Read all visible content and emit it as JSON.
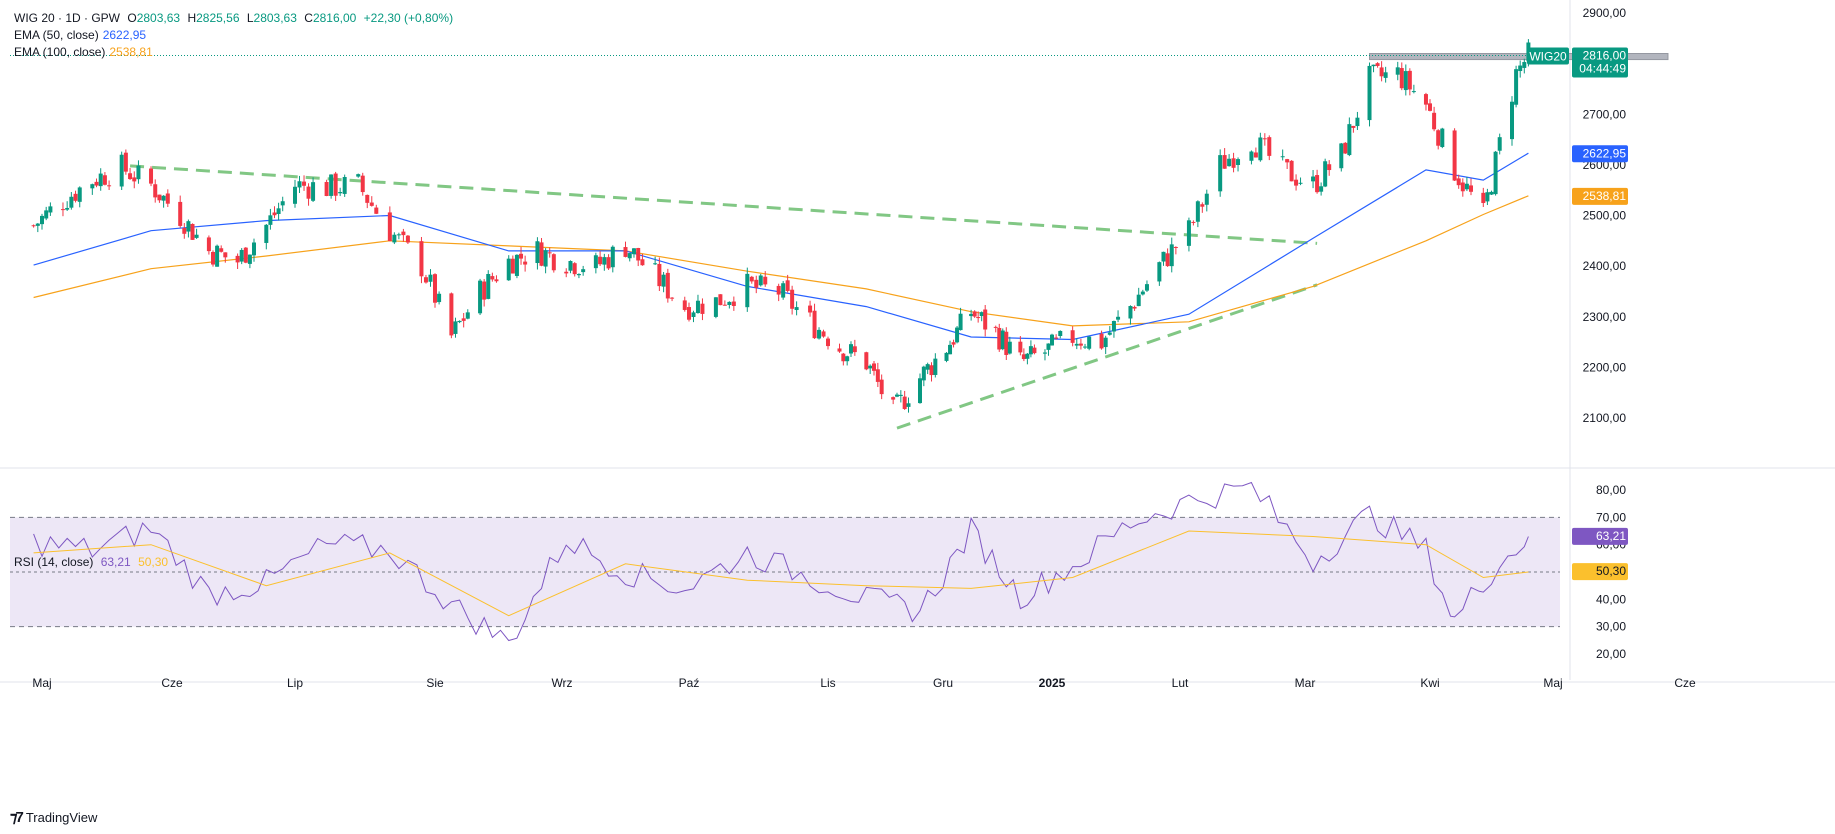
{
  "header": {
    "symbol": "WIG 20 · 1D · GPW",
    "o_label": "O",
    "o_value": "2803,63",
    "h_label": "H",
    "h_value": "2825,56",
    "l_label": "L",
    "l_value": "2803,63",
    "c_label": "C",
    "c_value": "2816,00",
    "change": "+22,30 (+0,80%)",
    "ema50_label": "EMA (50, close)",
    "ema50_value": "2622,95",
    "ema100_label": "EMA (100, close)",
    "ema100_value": "2538,81"
  },
  "rsi_header": {
    "label": "RSI (14, close)",
    "rsi_value": "63,21",
    "ma_value": "50,30"
  },
  "branding": {
    "logo_text": "TradingView",
    "logo_icon": "tradingview-logo-icon"
  },
  "colors": {
    "up": "#089981",
    "down": "#f23645",
    "ema50": "#2962ff",
    "ema100": "#f7a21b",
    "rsi": "#7e57c2",
    "rsi_ma": "#fbc02d",
    "trendline": "#81c784",
    "band": "#ede7f6"
  },
  "chart_data": [
    {
      "type": "candlestick",
      "title": "WIG 20",
      "xlabel": "",
      "ylabel": "",
      "x_ticks": [
        "Maj",
        "Cze",
        "Lip",
        "Sie",
        "Wrz",
        "Paź",
        "Lis",
        "Gru",
        "2025",
        "Lut",
        "Mar",
        "Kwi",
        "Maj",
        "Cze"
      ],
      "y_ticks": [
        "2100,00",
        "2200,00",
        "2300,00",
        "2400,00",
        "2500,00",
        "2600,00",
        "2700,00",
        "2800,00",
        "2900,00"
      ],
      "ylim": [
        2050,
        2910
      ],
      "price_labels": [
        {
          "name": "WIG20",
          "value": 2816.0,
          "text": "2816,00",
          "timer": "04:44:49",
          "color": "#089981"
        },
        {
          "name": "EMA 50",
          "value": 2622.95,
          "text": "2622,95",
          "color": "#2962ff"
        },
        {
          "name": "EMA 100",
          "value": 2538.81,
          "text": "2538,81",
          "color": "#f7a21b"
        }
      ],
      "resistance_zone": {
        "from_date": "2025-03-17",
        "to_date": "2025-05-28",
        "y_low": 2808,
        "y_high": 2820
      },
      "trendlines": [
        {
          "from": [
            "2024-05-22",
            2598
          ],
          "to": [
            "2025-03-04",
            2445
          ]
        },
        {
          "from": [
            "2024-11-19",
            2080
          ],
          "to": [
            "2025-03-04",
            2363
          ]
        }
      ],
      "series": [
        {
          "name": "Close",
          "dates": [
            "2024-04-29",
            "2024-05-06",
            "2024-05-13",
            "2024-05-20",
            "2024-05-27",
            "2024-06-03",
            "2024-06-10",
            "2024-06-17",
            "2024-06-24",
            "2024-07-01",
            "2024-07-08",
            "2024-07-15",
            "2024-07-22",
            "2024-07-29",
            "2024-08-05",
            "2024-08-12",
            "2024-08-19",
            "2024-08-26",
            "2024-09-02",
            "2024-09-09",
            "2024-09-16",
            "2024-09-23",
            "2024-09-30",
            "2024-10-07",
            "2024-10-14",
            "2024-10-21",
            "2024-10-28",
            "2024-11-04",
            "2024-11-11",
            "2024-11-18",
            "2024-11-25",
            "2024-12-02",
            "2024-12-09",
            "2024-12-16",
            "2024-12-23",
            "2024-12-30",
            "2025-01-06",
            "2025-01-13",
            "2025-01-20",
            "2025-01-27",
            "2025-02-03",
            "2025-02-10",
            "2025-02-17",
            "2025-02-24",
            "2025-03-03",
            "2025-03-10",
            "2025-03-17",
            "2025-03-24",
            "2025-03-31",
            "2025-04-07",
            "2025-04-14",
            "2025-04-22",
            "2025-04-25"
          ],
          "values": [
            2480,
            2530,
            2570,
            2595,
            2560,
            2500,
            2430,
            2410,
            2480,
            2560,
            2555,
            2560,
            2470,
            2400,
            2260,
            2350,
            2410,
            2430,
            2410,
            2400,
            2440,
            2380,
            2320,
            2330,
            2360,
            2350,
            2290,
            2240,
            2210,
            2110,
            2180,
            2240,
            2310,
            2270,
            2210,
            2230,
            2260,
            2250,
            2320,
            2400,
            2470,
            2600,
            2650,
            2590,
            2560,
            2620,
            2770,
            2780,
            2720,
            2590,
            2500,
            2780,
            2816
          ]
        },
        {
          "name": "EMA 50",
          "dates": [
            "2024-04-29",
            "2024-05-27",
            "2024-06-24",
            "2024-07-22",
            "2024-08-19",
            "2024-09-16",
            "2024-10-14",
            "2024-11-11",
            "2024-12-09",
            "2025-01-06",
            "2025-02-03",
            "2025-03-03",
            "2025-03-31",
            "2025-04-14",
            "2025-04-25"
          ],
          "values": [
            2402,
            2470,
            2490,
            2500,
            2430,
            2430,
            2360,
            2320,
            2260,
            2255,
            2305,
            2455,
            2590,
            2570,
            2623
          ]
        },
        {
          "name": "EMA 100",
          "dates": [
            "2024-04-29",
            "2024-05-27",
            "2024-06-24",
            "2024-07-22",
            "2024-08-19",
            "2024-09-16",
            "2024-10-14",
            "2024-11-11",
            "2024-12-09",
            "2025-01-06",
            "2025-02-03",
            "2025-03-03",
            "2025-03-31",
            "2025-04-14",
            "2025-04-25"
          ],
          "values": [
            2338,
            2395,
            2420,
            2450,
            2440,
            2430,
            2390,
            2355,
            2310,
            2282,
            2290,
            2360,
            2450,
            2502,
            2539
          ]
        }
      ]
    },
    {
      "type": "line",
      "title": "RSI (14, close)",
      "xlabel": "",
      "ylabel": "",
      "y_ticks": [
        "20,00",
        "30,00",
        "40,00",
        "50,00",
        "60,00",
        "70,00",
        "80,00"
      ],
      "ylim": [
        16,
        85
      ],
      "levels": [
        30,
        50,
        70
      ],
      "price_labels": [
        {
          "name": "RSI",
          "value": 63.21,
          "text": "63,21",
          "color": "#7e57c2"
        },
        {
          "name": "RSI MA",
          "value": 50.3,
          "text": "50,30",
          "color": "#fbc02d"
        }
      ],
      "series": [
        {
          "name": "RSI",
          "dates": [
            "2024-04-29",
            "2024-05-13",
            "2024-05-27",
            "2024-06-10",
            "2024-06-24",
            "2024-07-08",
            "2024-07-22",
            "2024-08-05",
            "2024-08-19",
            "2024-09-02",
            "2024-09-16",
            "2024-09-30",
            "2024-10-14",
            "2024-10-28",
            "2024-11-11",
            "2024-11-25",
            "2024-12-09",
            "2024-12-23",
            "2025-01-06",
            "2025-01-20",
            "2025-02-03",
            "2025-02-17",
            "2025-03-03",
            "2025-03-17",
            "2025-03-31",
            "2025-04-07",
            "2025-04-14",
            "2025-04-25"
          ],
          "values": [
            61,
            58,
            66,
            42,
            46,
            60,
            58,
            38,
            24,
            62,
            50,
            44,
            57,
            48,
            40,
            36,
            65,
            41,
            52,
            68,
            76,
            81,
            54,
            71,
            58,
            32,
            47,
            63
          ]
        },
        {
          "name": "RSI MA",
          "dates": [
            "2024-04-29",
            "2024-05-27",
            "2024-06-24",
            "2024-07-22",
            "2024-08-19",
            "2024-09-16",
            "2024-10-14",
            "2024-11-11",
            "2024-12-09",
            "2025-01-06",
            "2025-02-03",
            "2025-03-03",
            "2025-03-31",
            "2025-04-14",
            "2025-04-25"
          ],
          "values": [
            57,
            60,
            45,
            57,
            34,
            53,
            47,
            45,
            44,
            48,
            65,
            63,
            60,
            48,
            50
          ]
        }
      ]
    }
  ]
}
